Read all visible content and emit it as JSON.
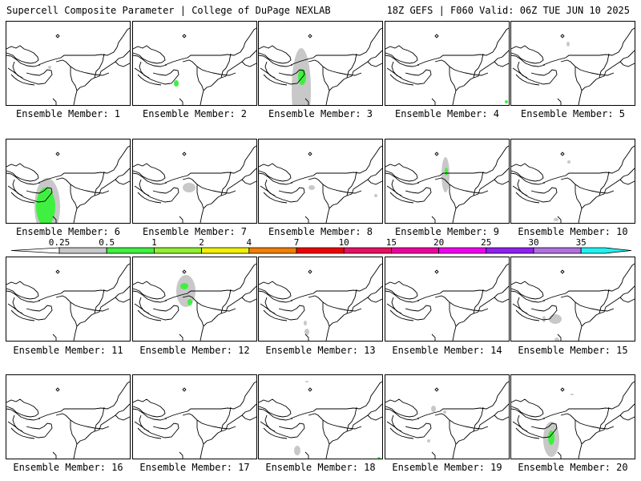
{
  "header": {
    "title_left": "Supercell Composite Parameter | College of DuPage NEXLAB",
    "title_right": "18Z GEFS | F060 Valid: 06Z TUE JUN 10 2025"
  },
  "legend": {
    "levels": [
      "0.25",
      "0.5",
      "1",
      "2",
      "4",
      "7",
      "10",
      "15",
      "20",
      "25",
      "30",
      "35"
    ],
    "colors": [
      "#c8c8c8",
      "#40f040",
      "#90f030",
      "#f0f000",
      "#f08000",
      "#f00000",
      "#e81060",
      "#f000a0",
      "#f000f0",
      "#9020f0",
      "#b070e0",
      "#20f0f0"
    ]
  },
  "members": [
    {
      "label": "Ensemble Member: 1"
    },
    {
      "label": "Ensemble Member: 2"
    },
    {
      "label": "Ensemble Member: 3"
    },
    {
      "label": "Ensemble Member: 4"
    },
    {
      "label": "Ensemble Member: 5"
    },
    {
      "label": "Ensemble Member: 6"
    },
    {
      "label": "Ensemble Member: 7"
    },
    {
      "label": "Ensemble Member: 8"
    },
    {
      "label": "Ensemble Member: 9"
    },
    {
      "label": "Ensemble Member: 10"
    },
    {
      "label": "Ensemble Member: 11"
    },
    {
      "label": "Ensemble Member: 12"
    },
    {
      "label": "Ensemble Member: 13"
    },
    {
      "label": "Ensemble Member: 14"
    },
    {
      "label": "Ensemble Member: 15"
    },
    {
      "label": "Ensemble Member: 16"
    },
    {
      "label": "Ensemble Member: 17"
    },
    {
      "label": "Ensemble Member: 18"
    },
    {
      "label": "Ensemble Member: 19"
    },
    {
      "label": "Ensemble Member: 20"
    }
  ]
}
